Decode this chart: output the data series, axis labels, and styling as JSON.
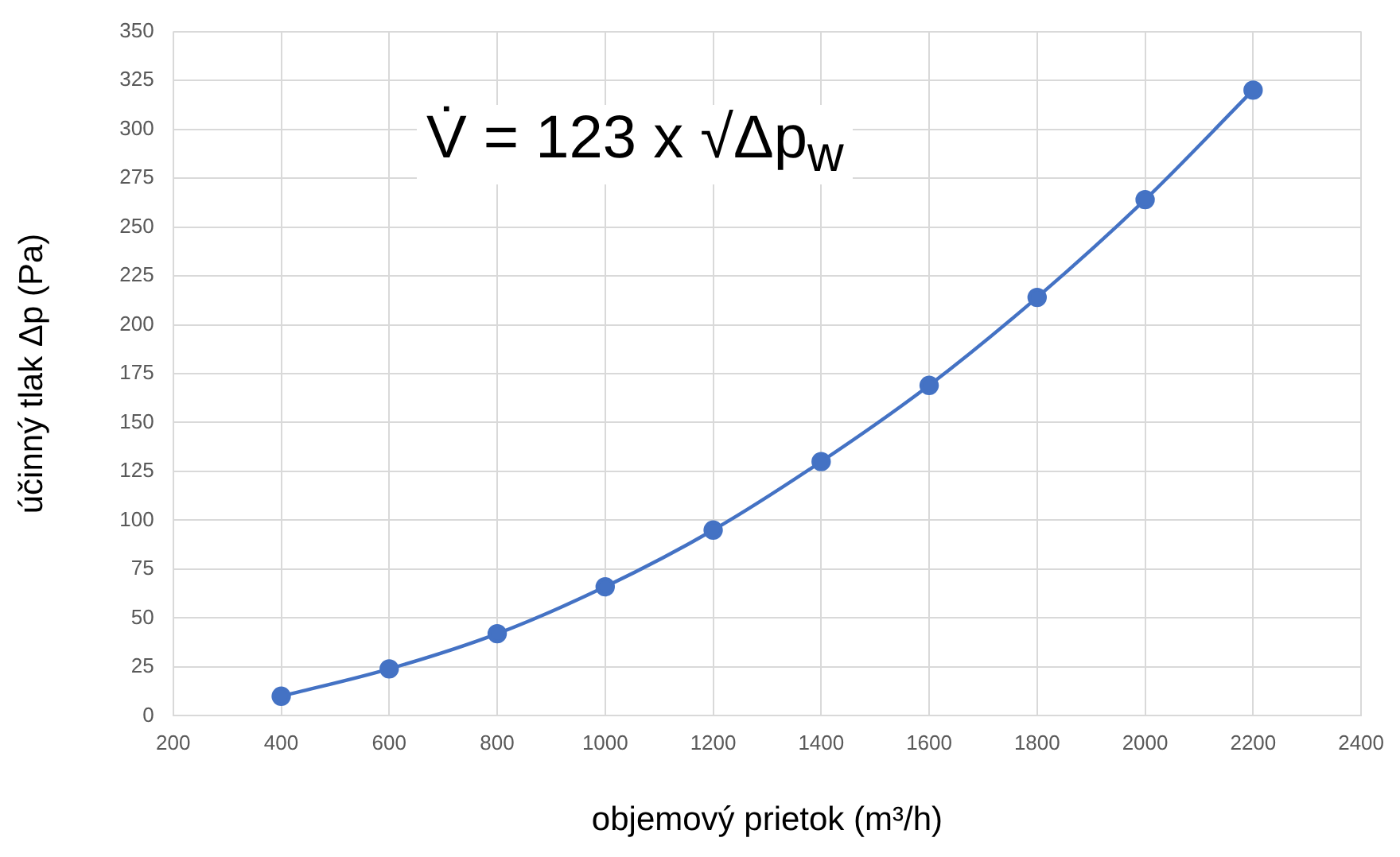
{
  "chart_data": {
    "type": "line",
    "xlabel": "objemový prietok (m³/h)",
    "ylabel": "účinný tlak Δp (Pa)",
    "annotations": [
      "V̇ = 123 x √Δp$_{w}$"
    ],
    "x": [
      400,
      600,
      800,
      1000,
      1200,
      1400,
      1600,
      1800,
      2000,
      2200
    ],
    "series": [
      {
        "color": "#4472c4",
        "values": [
          10,
          24,
          42,
          66,
          95,
          130,
          169,
          214,
          264,
          320
        ]
      }
    ],
    "xlim": [
      200,
      2400
    ],
    "xticks": [
      200,
      400,
      600,
      800,
      1000,
      1200,
      1400,
      1600,
      1800,
      2000,
      2200,
      2400
    ],
    "ylim": [
      0,
      350
    ],
    "yticks": [
      0,
      25,
      50,
      75,
      100,
      125,
      150,
      175,
      200,
      225,
      250,
      275,
      300,
      325,
      350
    ],
    "grid": true,
    "legend": false,
    "marker": "circle",
    "line_style": "solid"
  }
}
